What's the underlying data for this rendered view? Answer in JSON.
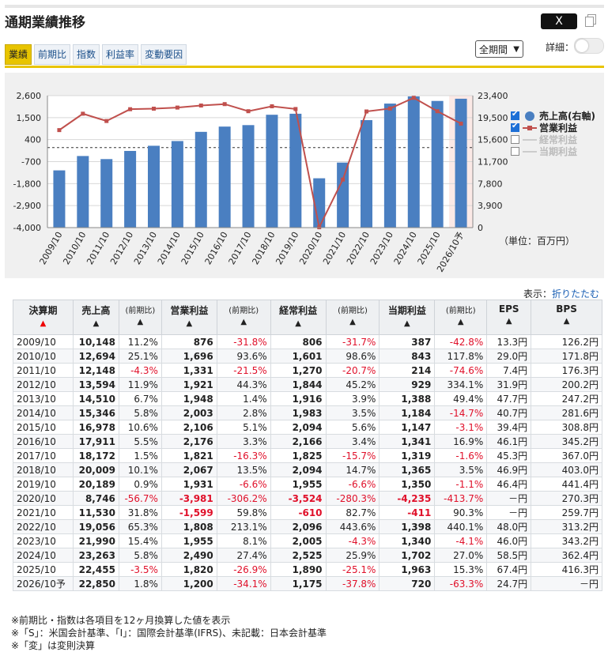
{
  "header": {
    "title": "通期業績推移",
    "x_label": "X"
  },
  "tabs": [
    "業績",
    "前期比",
    "指数",
    "利益率",
    "変動要因"
  ],
  "period_select": "全期間",
  "detail_label": "詳細：",
  "legend": {
    "sales": "売上高(右軸)",
    "operating": "営業利益",
    "ordinary": "経常利益",
    "net": "当期利益"
  },
  "unit_label": "（単位：百万円）",
  "display_label": "表示：",
  "display_link": "折りたたむ",
  "chart_data": {
    "type": "bar",
    "categories": [
      "2009/10",
      "2010/10",
      "2011/10",
      "2012/10",
      "2013/10",
      "2014/10",
      "2015/10",
      "2016/10",
      "2017/10",
      "2018/10",
      "2019/10",
      "2020/10",
      "2021/10",
      "2022/10",
      "2023/10",
      "2024/10",
      "2025/10",
      "2026/10予"
    ],
    "series": [
      {
        "name": "売上高(右軸)",
        "axis": "right",
        "type": "bar",
        "color": "#4a7fc1",
        "values": [
          10148,
          12694,
          12148,
          13594,
          14510,
          15346,
          16978,
          17911,
          18172,
          20009,
          20189,
          8746,
          11530,
          19056,
          21990,
          23263,
          22455,
          22850
        ]
      },
      {
        "name": "営業利益",
        "axis": "left",
        "type": "line",
        "color": "#c0504d",
        "values": [
          876,
          1696,
          1331,
          1921,
          1948,
          2003,
          2106,
          2176,
          1821,
          2067,
          1931,
          -3981,
          -1599,
          1808,
          1955,
          2490,
          1820,
          1200
        ]
      }
    ],
    "left_ticks": [
      "2,600",
      "1,500",
      "400",
      "-700",
      "-1,800",
      "-2,900",
      "-4,000"
    ],
    "right_ticks": [
      "23,400",
      "19,500",
      "15,600",
      "11,700",
      "7,800",
      "3,900",
      "0"
    ],
    "ylim_left": [
      -4000,
      2600
    ],
    "ylim_right": [
      0,
      23400
    ],
    "zero_line": "dashed",
    "forecast_highlight": "2026/10予"
  },
  "table": {
    "headers": [
      "決算期",
      "売上高",
      "(前期比)",
      "営業利益",
      "(前期比)",
      "経常利益",
      "(前期比)",
      "当期利益",
      "(前期比)",
      "EPS",
      "BPS"
    ],
    "rows": [
      [
        "2009/10",
        "10,148",
        "11.2%",
        "876",
        "-31.8%",
        "806",
        "-31.7%",
        "387",
        "-42.8%",
        "13.3円",
        "126.2円"
      ],
      [
        "2010/10",
        "12,694",
        "25.1%",
        "1,696",
        "93.6%",
        "1,601",
        "98.6%",
        "843",
        "117.8%",
        "29.0円",
        "171.8円"
      ],
      [
        "2011/10",
        "12,148",
        "-4.3%",
        "1,331",
        "-21.5%",
        "1,270",
        "-20.7%",
        "214",
        "-74.6%",
        "7.4円",
        "176.3円"
      ],
      [
        "2012/10",
        "13,594",
        "11.9%",
        "1,921",
        "44.3%",
        "1,844",
        "45.2%",
        "929",
        "334.1%",
        "31.9円",
        "200.2円"
      ],
      [
        "2013/10",
        "14,510",
        "6.7%",
        "1,948",
        "1.4%",
        "1,916",
        "3.9%",
        "1,388",
        "49.4%",
        "47.7円",
        "247.2円"
      ],
      [
        "2014/10",
        "15,346",
        "5.8%",
        "2,003",
        "2.8%",
        "1,983",
        "3.5%",
        "1,184",
        "-14.7%",
        "40.7円",
        "281.6円"
      ],
      [
        "2015/10",
        "16,978",
        "10.6%",
        "2,106",
        "5.1%",
        "2,094",
        "5.6%",
        "1,147",
        "-3.1%",
        "39.4円",
        "308.8円"
      ],
      [
        "2016/10",
        "17,911",
        "5.5%",
        "2,176",
        "3.3%",
        "2,166",
        "3.4%",
        "1,341",
        "16.9%",
        "46.1円",
        "345.2円"
      ],
      [
        "2017/10",
        "18,172",
        "1.5%",
        "1,821",
        "-16.3%",
        "1,825",
        "-15.7%",
        "1,319",
        "-1.6%",
        "45.3円",
        "367.0円"
      ],
      [
        "2018/10",
        "20,009",
        "10.1%",
        "2,067",
        "13.5%",
        "2,094",
        "14.7%",
        "1,365",
        "3.5%",
        "46.9円",
        "403.0円"
      ],
      [
        "2019/10",
        "20,189",
        "0.9%",
        "1,931",
        "-6.6%",
        "1,955",
        "-6.6%",
        "1,350",
        "-1.1%",
        "46.4円",
        "441.4円"
      ],
      [
        "2020/10",
        "8,746",
        "-56.7%",
        "-3,981",
        "-306.2%",
        "-3,524",
        "-280.3%",
        "-4,235",
        "-413.7%",
        "－円",
        "270.3円"
      ],
      [
        "2021/10",
        "11,530",
        "31.8%",
        "-1,599",
        "59.8%",
        "-610",
        "82.7%",
        "-411",
        "90.3%",
        "－円",
        "259.7円"
      ],
      [
        "2022/10",
        "19,056",
        "65.3%",
        "1,808",
        "213.1%",
        "2,096",
        "443.6%",
        "1,398",
        "440.1%",
        "48.0円",
        "313.2円"
      ],
      [
        "2023/10",
        "21,990",
        "15.4%",
        "1,955",
        "8.1%",
        "2,005",
        "-4.3%",
        "1,340",
        "-4.1%",
        "46.0円",
        "343.2円"
      ],
      [
        "2024/10",
        "23,263",
        "5.8%",
        "2,490",
        "27.4%",
        "2,525",
        "25.9%",
        "1,702",
        "27.0%",
        "58.5円",
        "362.4円"
      ],
      [
        "2025/10",
        "22,455",
        "-3.5%",
        "1,820",
        "-26.9%",
        "1,890",
        "-25.1%",
        "1,963",
        "15.3%",
        "67.4円",
        "416.3円"
      ],
      [
        "2026/10予",
        "22,850",
        "1.8%",
        "1,200",
        "-34.1%",
        "1,175",
        "-37.8%",
        "720",
        "-63.3%",
        "24.7円",
        "－円"
      ]
    ]
  },
  "notes": [
    "※前期比・指数は各項目を12ヶ月換算した値を表示",
    "※「S」：米国会計基準、「I」：国際会計基準(IFRS)、未記載：日本会計基準",
    "※「変」は変則決算"
  ]
}
